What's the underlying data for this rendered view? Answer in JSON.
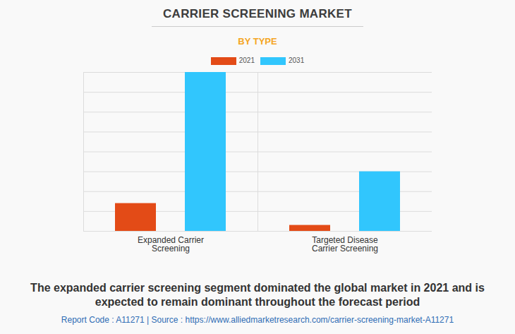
{
  "chart_data": {
    "type": "bar",
    "title": "CARRIER SCREENING MARKET",
    "subtitle": "BY TYPE",
    "caption": "The expanded carrier screening segment dominated the global market in 2021 and is expected to remain dominant throughout the forecast period",
    "source": "Report Code : A11271  |  Source : https://www.alliedmarketresearch.com/carrier-screening-market-A11271",
    "categories": [
      "Expanded Carrier Screening",
      "Targeted Disease Carrier Screening"
    ],
    "series": [
      {
        "name": "2021",
        "color": "#e34b17",
        "values": [
          1.4,
          0.3
        ]
      },
      {
        "name": "2031",
        "color": "#31c6fd",
        "values": [
          8.0,
          3.0
        ]
      }
    ],
    "ylim": [
      0,
      8
    ],
    "yticks": [
      0,
      1,
      2,
      3,
      4,
      5,
      6,
      7,
      8
    ],
    "grid": true,
    "legend": "top",
    "tick_labels": "x"
  }
}
